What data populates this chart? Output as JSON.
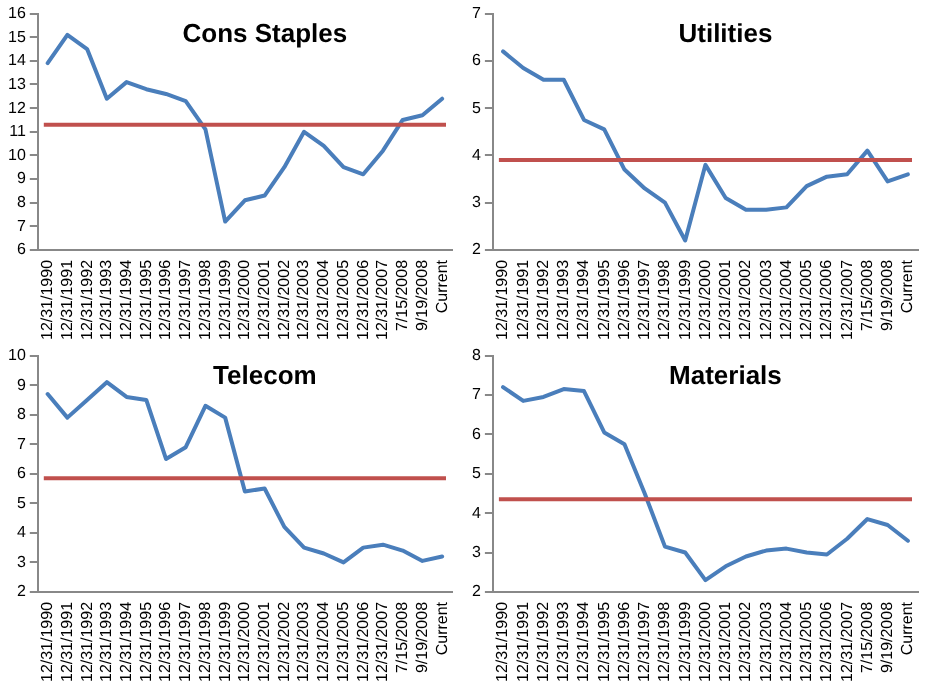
{
  "chart_data": [
    {
      "type": "line",
      "title": "Cons Staples",
      "categories": [
        "12/31/1990",
        "12/31/1991",
        "12/31/1992",
        "12/31/1993",
        "12/31/1994",
        "12/31/1995",
        "12/31/1996",
        "12/31/1997",
        "12/31/1998",
        "12/31/1999",
        "12/31/2000",
        "12/31/2001",
        "12/31/2002",
        "12/31/2003",
        "12/31/2004",
        "12/31/2005",
        "12/31/2006",
        "12/31/2007",
        "7/15/2008",
        "9/19/2008",
        "Current"
      ],
      "series": [
        {
          "color": "#4a7ebb",
          "values": [
            13.9,
            15.1,
            14.5,
            12.4,
            13.1,
            12.8,
            12.6,
            12.3,
            11.1,
            7.2,
            8.1,
            8.3,
            9.5,
            11.0,
            10.4,
            9.5,
            9.2,
            10.2,
            11.5,
            11.7,
            12.4
          ]
        }
      ],
      "ylim": [
        6,
        16
      ],
      "yticks": [
        6,
        7,
        8,
        9,
        10,
        11,
        12,
        13,
        14,
        15,
        16
      ],
      "ref_lines": [
        {
          "axis": "y",
          "value": 11.3,
          "color": "#c0504d"
        }
      ],
      "grid": false,
      "legend": false,
      "marker": "none",
      "line_style": "solid"
    },
    {
      "type": "line",
      "title": "Utilities",
      "categories": [
        "12/31/1990",
        "12/31/1991",
        "12/31/1992",
        "12/31/1993",
        "12/31/1994",
        "12/31/1995",
        "12/31/1996",
        "12/31/1997",
        "12/31/1998",
        "12/31/1999",
        "12/31/2000",
        "12/31/2001",
        "12/31/2002",
        "12/31/2003",
        "12/31/2004",
        "12/31/2005",
        "12/31/2006",
        "12/31/2007",
        "7/15/2008",
        "9/19/2008",
        "Current"
      ],
      "series": [
        {
          "color": "#4a7ebb",
          "values": [
            6.2,
            5.85,
            5.6,
            5.6,
            4.75,
            4.55,
            3.7,
            3.3,
            3.0,
            2.2,
            3.8,
            3.1,
            2.85,
            2.85,
            2.9,
            3.35,
            3.55,
            3.6,
            4.1,
            3.45,
            3.6
          ]
        }
      ],
      "ylim": [
        2,
        7
      ],
      "yticks": [
        2,
        3,
        4,
        5,
        6,
        7
      ],
      "ref_lines": [
        {
          "axis": "y",
          "value": 3.9,
          "color": "#c0504d"
        }
      ],
      "grid": false,
      "legend": false,
      "marker": "none",
      "line_style": "solid"
    },
    {
      "type": "line",
      "title": "Telecom",
      "categories": [
        "12/31/1990",
        "12/31/1991",
        "12/31/1992",
        "12/31/1993",
        "12/31/1994",
        "12/31/1995",
        "12/31/1996",
        "12/31/1997",
        "12/31/1998",
        "12/31/1999",
        "12/31/2000",
        "12/31/2001",
        "12/31/2002",
        "12/31/2003",
        "12/31/2004",
        "12/31/2005",
        "12/31/2006",
        "12/31/2007",
        "7/15/2008",
        "9/19/2008",
        "Current"
      ],
      "series": [
        {
          "color": "#4a7ebb",
          "values": [
            8.7,
            7.9,
            8.5,
            9.1,
            8.6,
            8.5,
            6.5,
            6.9,
            8.3,
            7.9,
            5.4,
            5.5,
            4.2,
            3.5,
            3.3,
            3.0,
            3.5,
            3.6,
            3.4,
            3.05,
            3.2
          ]
        }
      ],
      "ylim": [
        2,
        10
      ],
      "yticks": [
        2,
        3,
        4,
        5,
        6,
        7,
        8,
        9,
        10
      ],
      "ref_lines": [
        {
          "axis": "y",
          "value": 5.85,
          "color": "#c0504d"
        }
      ],
      "grid": false,
      "legend": false,
      "marker": "none",
      "line_style": "solid"
    },
    {
      "type": "line",
      "title": "Materials",
      "categories": [
        "12/31/1990",
        "12/31/1991",
        "12/31/1992",
        "12/31/1993",
        "12/31/1994",
        "12/31/1995",
        "12/31/1996",
        "12/31/1997",
        "12/31/1998",
        "12/31/1999",
        "12/31/2000",
        "12/31/2001",
        "12/31/2002",
        "12/31/2003",
        "12/31/2004",
        "12/31/2005",
        "12/31/2006",
        "12/31/2007",
        "7/15/2008",
        "9/19/2008",
        "Current"
      ],
      "series": [
        {
          "color": "#4a7ebb",
          "values": [
            7.2,
            6.85,
            6.95,
            7.15,
            7.1,
            6.05,
            5.75,
            4.5,
            3.15,
            3.0,
            2.3,
            2.65,
            2.9,
            3.05,
            3.1,
            3.0,
            2.95,
            3.35,
            3.85,
            3.7,
            3.3
          ]
        }
      ],
      "ylim": [
        2,
        8
      ],
      "yticks": [
        2,
        3,
        4,
        5,
        6,
        7,
        8
      ],
      "ref_lines": [
        {
          "axis": "y",
          "value": 4.35,
          "color": "#c0504d"
        }
      ],
      "grid": false,
      "legend": false,
      "marker": "none",
      "line_style": "solid"
    }
  ]
}
